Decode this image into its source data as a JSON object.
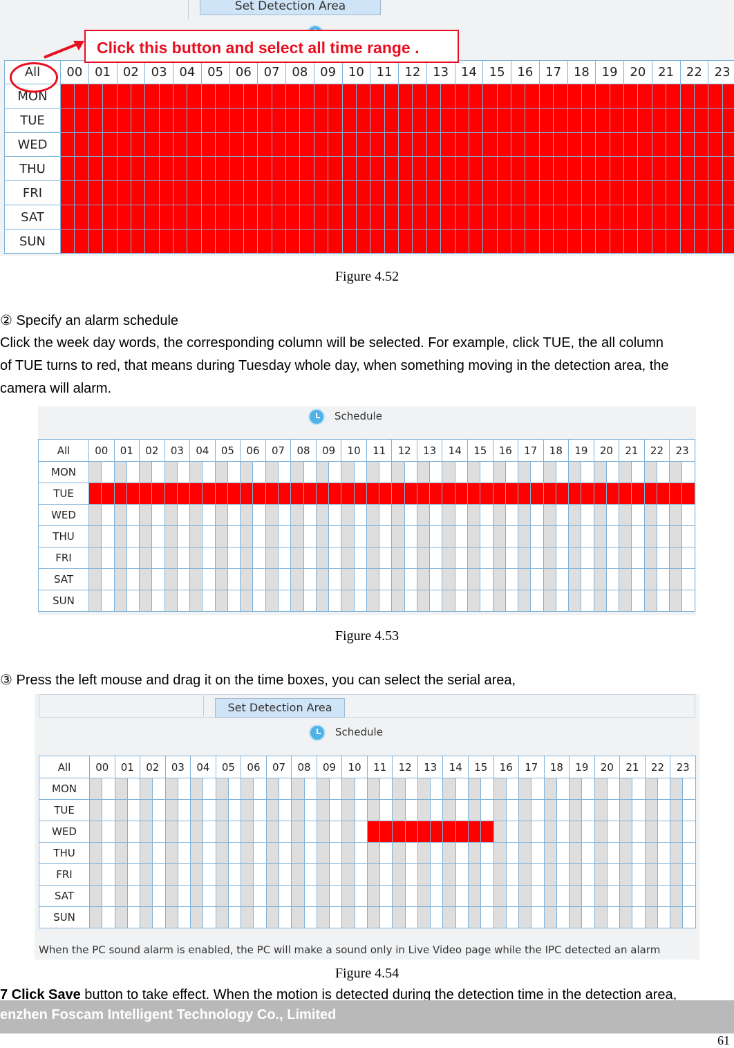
{
  "hours": [
    "00",
    "01",
    "02",
    "03",
    "04",
    "05",
    "06",
    "07",
    "08",
    "09",
    "10",
    "11",
    "12",
    "13",
    "14",
    "15",
    "16",
    "17",
    "18",
    "19",
    "20",
    "21",
    "22",
    "23"
  ],
  "days": [
    "MON",
    "TUE",
    "WED",
    "THU",
    "FRI",
    "SAT",
    "SUN"
  ],
  "all_label": "All",
  "fig1": {
    "button": "Set Detection Area",
    "callout": "Click this button and select all time range .",
    "caption": "Figure 4.52",
    "selected": {
      "MON": [
        0,
        23
      ],
      "TUE": [
        0,
        23
      ],
      "WED": [
        0,
        23
      ],
      "THU": [
        0,
        23
      ],
      "FRI": [
        0,
        23
      ],
      "SAT": [
        0,
        23
      ],
      "SUN": [
        0,
        23
      ]
    }
  },
  "step2": {
    "heading": "② Specify an alarm schedule",
    "line1": "Click the week day words, the corresponding column will be selected. For example, click TUE, the all column",
    "line2": "of TUE turns to red, that means during Tuesday whole day, when something moving in the detection area, the",
    "line3": "camera will alarm."
  },
  "fig2": {
    "title": "Schedule",
    "caption": "Figure 4.53",
    "selected": {
      "TUE": [
        0,
        23
      ]
    }
  },
  "step3": {
    "heading": "③ Press the left mouse and drag it on the time boxes, you can select the serial area,"
  },
  "fig3": {
    "button": "Set Detection Area",
    "title": "Schedule",
    "note": "When the PC sound alarm is enabled, the PC will make a sound only in Live Video page while the IPC detected an alarm",
    "caption": "Figure 4.54",
    "selected": {
      "WED": [
        11,
        15
      ]
    }
  },
  "step7": {
    "bold": "7 Click Save",
    "rest": " button to take effect. When the motion is detected during the detection time in the detection area,"
  },
  "footer": {
    "company": "enzhen Foscam Intelligent Technology Co., Limited",
    "page": "61"
  },
  "colors": {
    "selected": "#ff0000",
    "grid_line": "#7fb2d9",
    "shade": "#dedede",
    "callout": "#e81020"
  }
}
